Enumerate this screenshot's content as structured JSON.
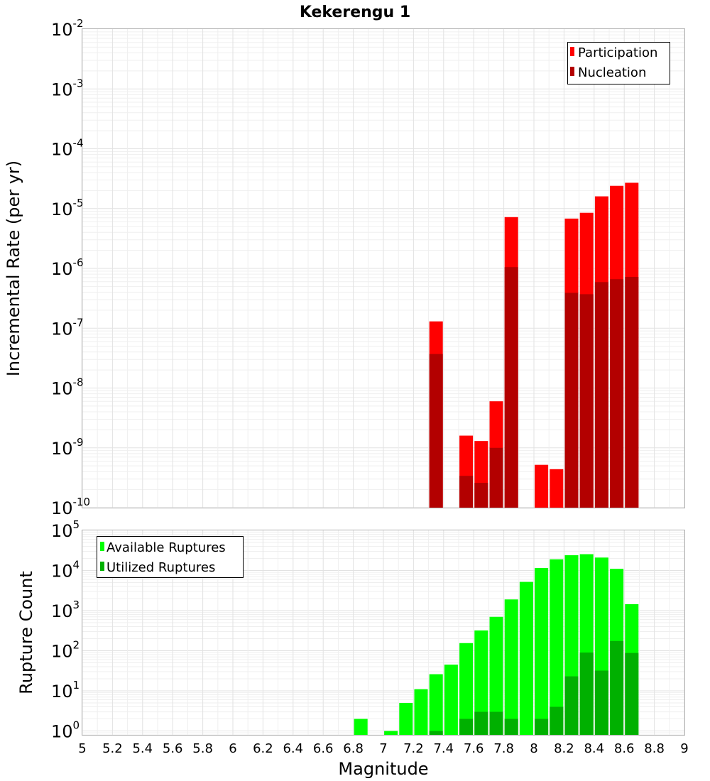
{
  "chart_data": [
    {
      "type": "bar",
      "title": "Kekerengu 1",
      "xlabel": "",
      "ylabel": "Incremental Rate (per yr)",
      "xlim": [
        5,
        9
      ],
      "ylim": [
        1e-10,
        0.01
      ],
      "yscale": "log",
      "grid": true,
      "legend_position": "top-right",
      "series": [
        {
          "name": "Participation",
          "color": "#ff0000",
          "points": [
            {
              "x": 7.35,
              "y": 1.3e-07
            },
            {
              "x": 7.55,
              "y": 1.6e-09
            },
            {
              "x": 7.65,
              "y": 1.3e-09
            },
            {
              "x": 7.75,
              "y": 6e-09
            },
            {
              "x": 7.85,
              "y": 7.2e-06
            },
            {
              "x": 8.05,
              "y": 5.2e-10
            },
            {
              "x": 8.15,
              "y": 4.4e-10
            },
            {
              "x": 8.25,
              "y": 6.8e-06
            },
            {
              "x": 8.35,
              "y": 8.5e-06
            },
            {
              "x": 8.45,
              "y": 1.6e-05
            },
            {
              "x": 8.55,
              "y": 2.4e-05
            },
            {
              "x": 8.65,
              "y": 2.7e-05
            }
          ]
        },
        {
          "name": "Nucleation",
          "color": "#b30000",
          "points": [
            {
              "x": 7.35,
              "y": 3.7e-08
            },
            {
              "x": 7.55,
              "y": 3.4e-10
            },
            {
              "x": 7.65,
              "y": 2.6e-10
            },
            {
              "x": 7.75,
              "y": 1e-09
            },
            {
              "x": 7.85,
              "y": 1.05e-06
            },
            {
              "x": 8.25,
              "y": 3.9e-07
            },
            {
              "x": 8.35,
              "y": 3.7e-07
            },
            {
              "x": 8.45,
              "y": 5.9e-07
            },
            {
              "x": 8.55,
              "y": 6.6e-07
            },
            {
              "x": 8.65,
              "y": 7.2e-07
            }
          ]
        }
      ]
    },
    {
      "type": "bar",
      "title": "",
      "xlabel": "Magnitude",
      "ylabel": "Rupture Count",
      "xlim": [
        5,
        9
      ],
      "ylim": [
        0.8,
        100000.0
      ],
      "yscale": "log",
      "grid": true,
      "legend_position": "top-left",
      "series": [
        {
          "name": "Available Ruptures",
          "color": "#00ff00",
          "points": [
            {
              "x": 6.85,
              "y": 2
            },
            {
              "x": 7.05,
              "y": 1
            },
            {
              "x": 7.15,
              "y": 5
            },
            {
              "x": 7.25,
              "y": 11
            },
            {
              "x": 7.35,
              "y": 26
            },
            {
              "x": 7.45,
              "y": 45
            },
            {
              "x": 7.55,
              "y": 155
            },
            {
              "x": 7.65,
              "y": 320
            },
            {
              "x": 7.75,
              "y": 700
            },
            {
              "x": 7.85,
              "y": 1900
            },
            {
              "x": 7.95,
              "y": 5200
            },
            {
              "x": 8.05,
              "y": 11500
            },
            {
              "x": 8.15,
              "y": 19000
            },
            {
              "x": 8.25,
              "y": 24000
            },
            {
              "x": 8.35,
              "y": 25500
            },
            {
              "x": 8.45,
              "y": 21000
            },
            {
              "x": 8.55,
              "y": 11000
            },
            {
              "x": 8.65,
              "y": 1450
            }
          ]
        },
        {
          "name": "Utilized Ruptures",
          "color": "#00b000",
          "points": [
            {
              "x": 7.35,
              "y": 1
            },
            {
              "x": 7.55,
              "y": 2
            },
            {
              "x": 7.65,
              "y": 3
            },
            {
              "x": 7.75,
              "y": 3
            },
            {
              "x": 7.85,
              "y": 2
            },
            {
              "x": 8.05,
              "y": 2
            },
            {
              "x": 8.15,
              "y": 4
            },
            {
              "x": 8.25,
              "y": 23
            },
            {
              "x": 8.35,
              "y": 90
            },
            {
              "x": 8.45,
              "y": 32
            },
            {
              "x": 8.55,
              "y": 175
            },
            {
              "x": 8.65,
              "y": 88
            }
          ]
        }
      ]
    }
  ],
  "top_y_ticks": [
    {
      "base": "10",
      "exp": "-2"
    },
    {
      "base": "10",
      "exp": "-3"
    },
    {
      "base": "10",
      "exp": "-4"
    },
    {
      "base": "10",
      "exp": "-5"
    },
    {
      "base": "10",
      "exp": "-6"
    },
    {
      "base": "10",
      "exp": "-7"
    },
    {
      "base": "10",
      "exp": "-8"
    },
    {
      "base": "10",
      "exp": "-9"
    },
    {
      "base": "10",
      "exp": "-10"
    }
  ],
  "bottom_y_ticks": [
    {
      "base": "10",
      "exp": "5"
    },
    {
      "base": "10",
      "exp": "4"
    },
    {
      "base": "10",
      "exp": "3"
    },
    {
      "base": "10",
      "exp": "2"
    },
    {
      "base": "10",
      "exp": "1"
    },
    {
      "base": "10",
      "exp": "0"
    }
  ],
  "x_tick_labels": [
    "5",
    "5.2",
    "5.4",
    "5.6",
    "5.8",
    "6",
    "6.2",
    "6.4",
    "6.6",
    "6.8",
    "7",
    "7.2",
    "7.4",
    "7.6",
    "7.8",
    "8",
    "8.2",
    "8.4",
    "8.6",
    "8.8",
    "9"
  ]
}
